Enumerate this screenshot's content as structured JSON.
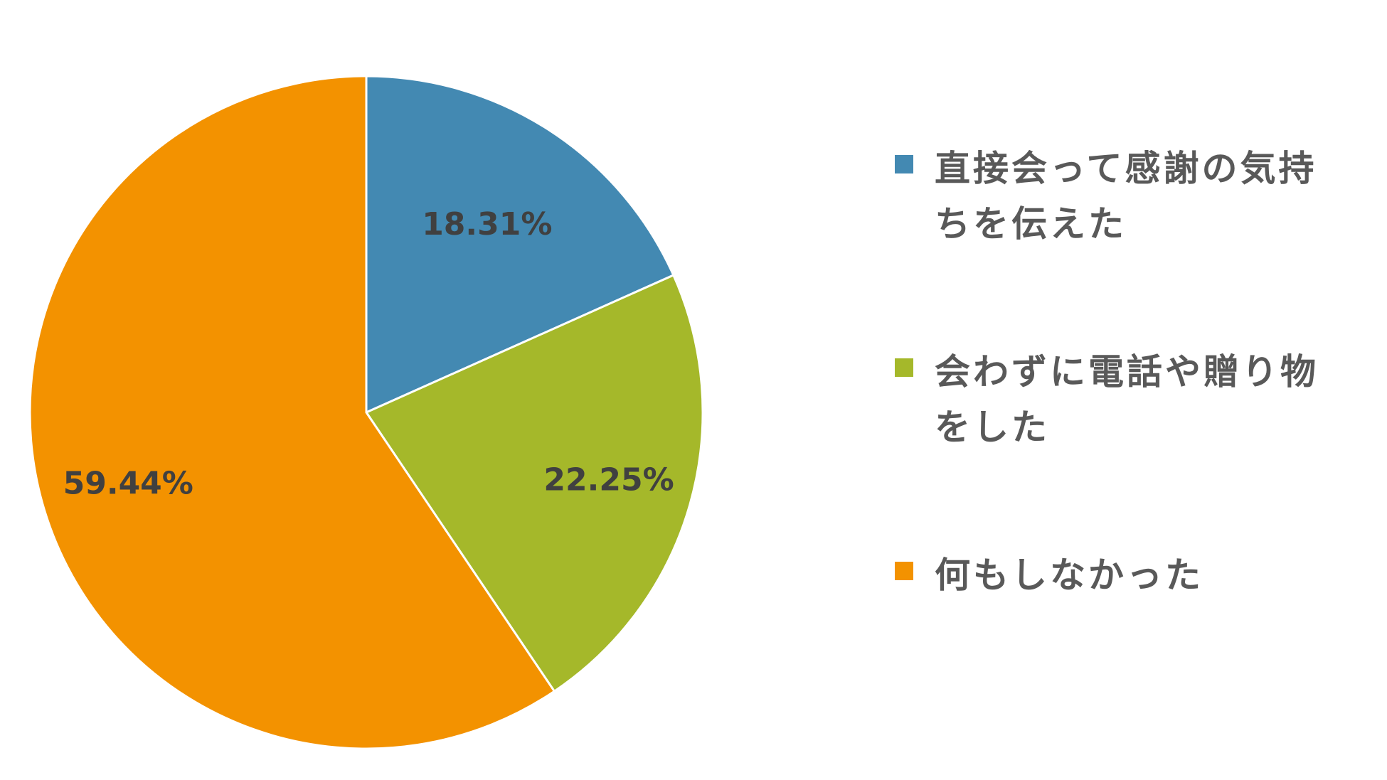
{
  "chart_data": {
    "type": "pie",
    "title": "",
    "legend_position": "right",
    "start_angle_deg": 0,
    "direction": "clockwise",
    "slices": [
      {
        "label": "直接会って感謝の気持ちを伝えた",
        "value": 18.31,
        "value_label": "18.31%",
        "color": "#4389B2"
      },
      {
        "label": "会わずに電話や贈り物をした",
        "value": 22.25,
        "value_label": "22.25%",
        "color": "#A5B82A"
      },
      {
        "label": "何もしなかった",
        "value": 59.44,
        "value_label": "59.44%",
        "color": "#F39200"
      }
    ]
  },
  "legend": {
    "items": [
      {
        "text_lines": [
          "直接会って感謝の気持",
          "ちを伝えた"
        ],
        "color": "#4389B2"
      },
      {
        "text_lines": [
          "会わずに電話や贈り物",
          "をした"
        ],
        "color": "#A5B82A"
      },
      {
        "text_lines": [
          "何もしなかった"
        ],
        "color": "#F39200"
      }
    ]
  }
}
